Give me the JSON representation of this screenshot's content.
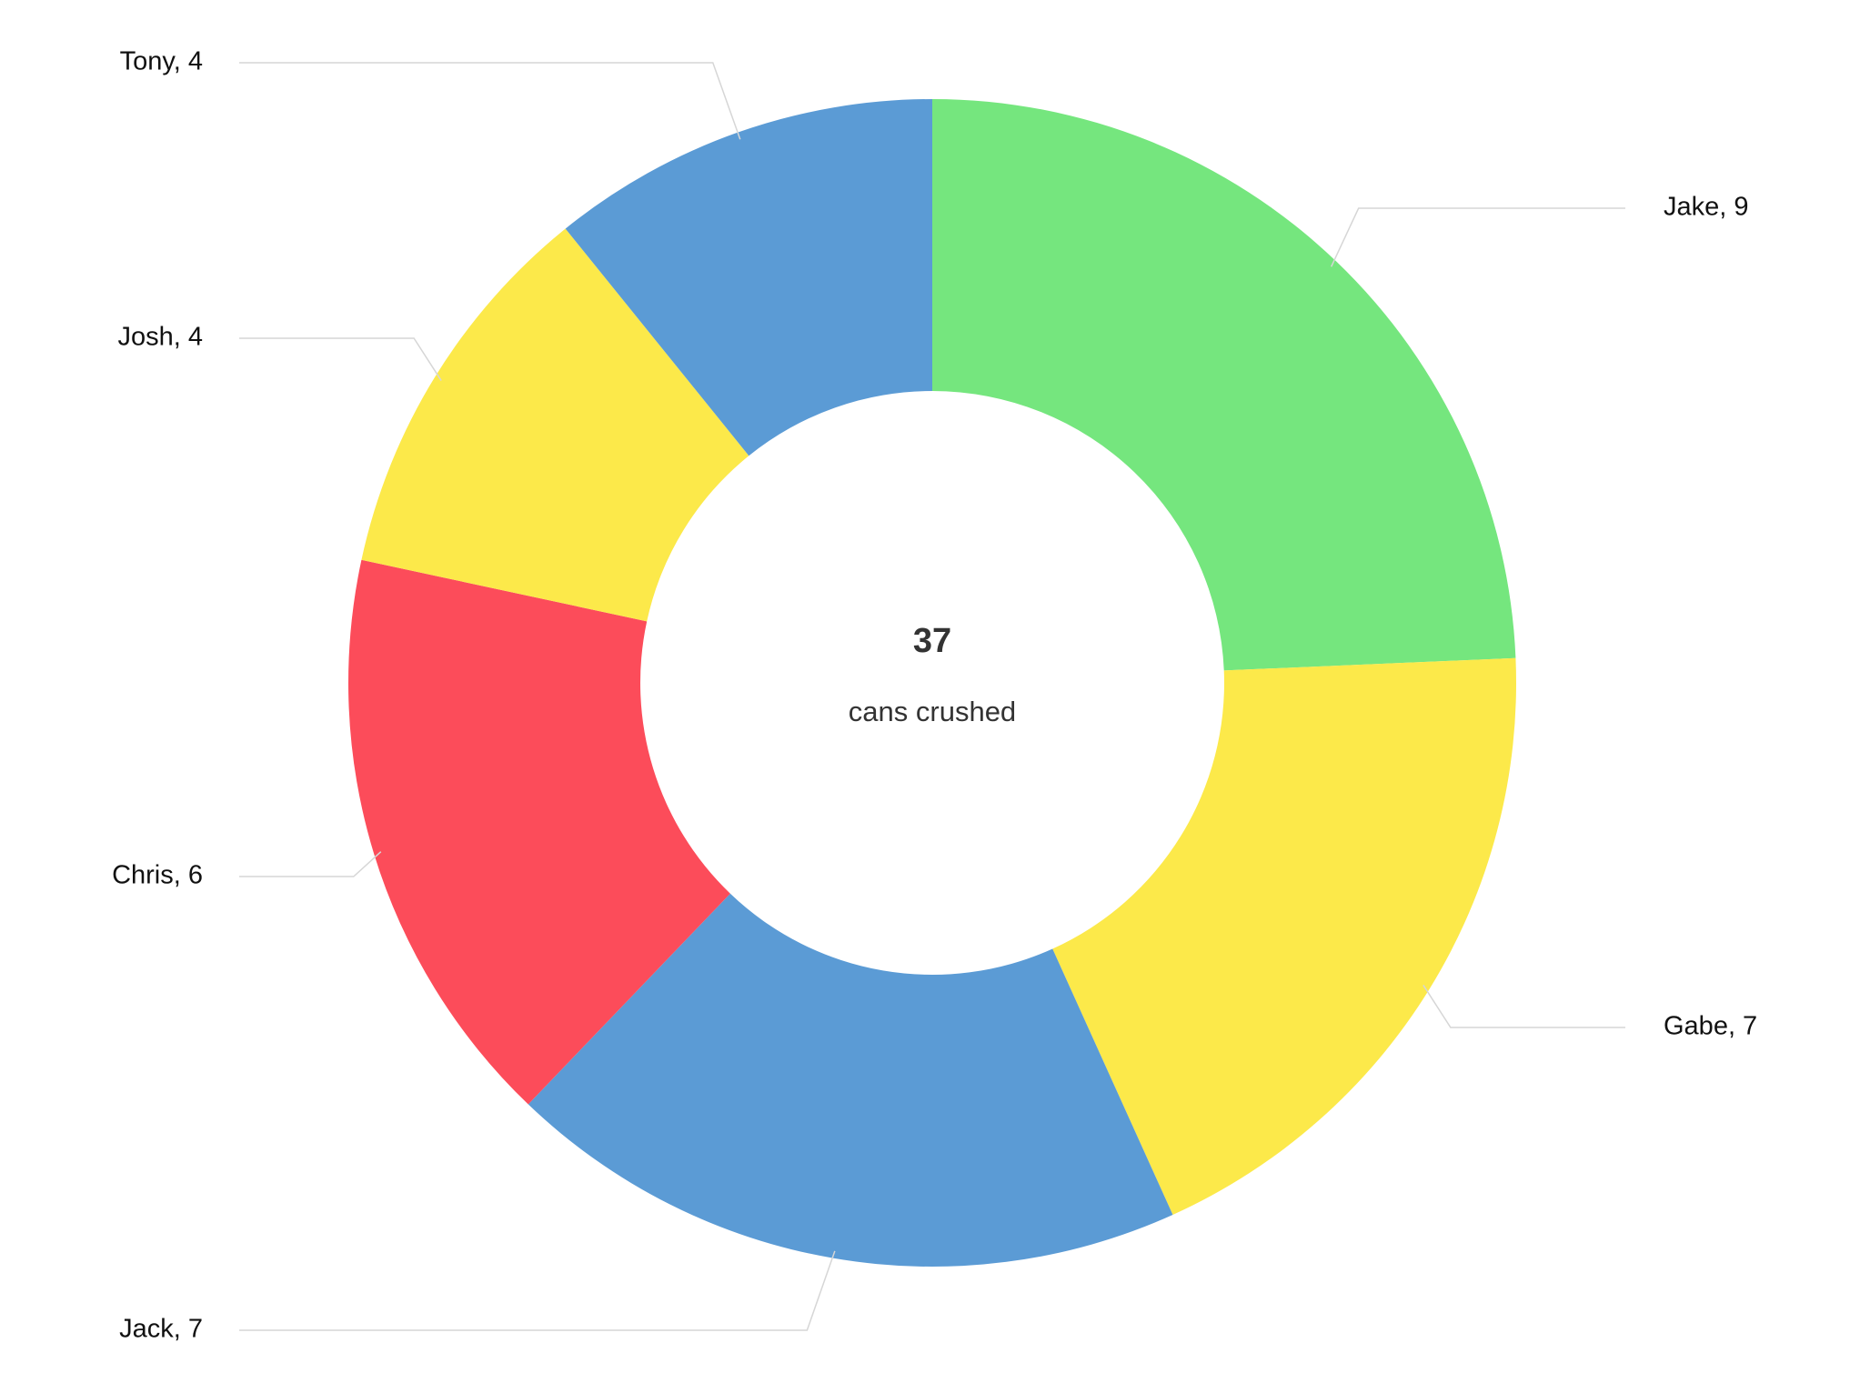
{
  "chart_data": {
    "type": "donut",
    "labels": [
      "Jake, 9",
      "Gabe, 7",
      "Jack, 7",
      "Chris, 6",
      "Josh, 4",
      "Tony, 4"
    ],
    "values": [
      9,
      7,
      7,
      6,
      4,
      4
    ],
    "colors": [
      "#75e67e",
      "#fce94a",
      "#5b9bd5",
      "#fc4c5a",
      "#fce94a",
      "#5b9bd5"
    ],
    "center_value": 37,
    "center_label": "cans crushed"
  }
}
